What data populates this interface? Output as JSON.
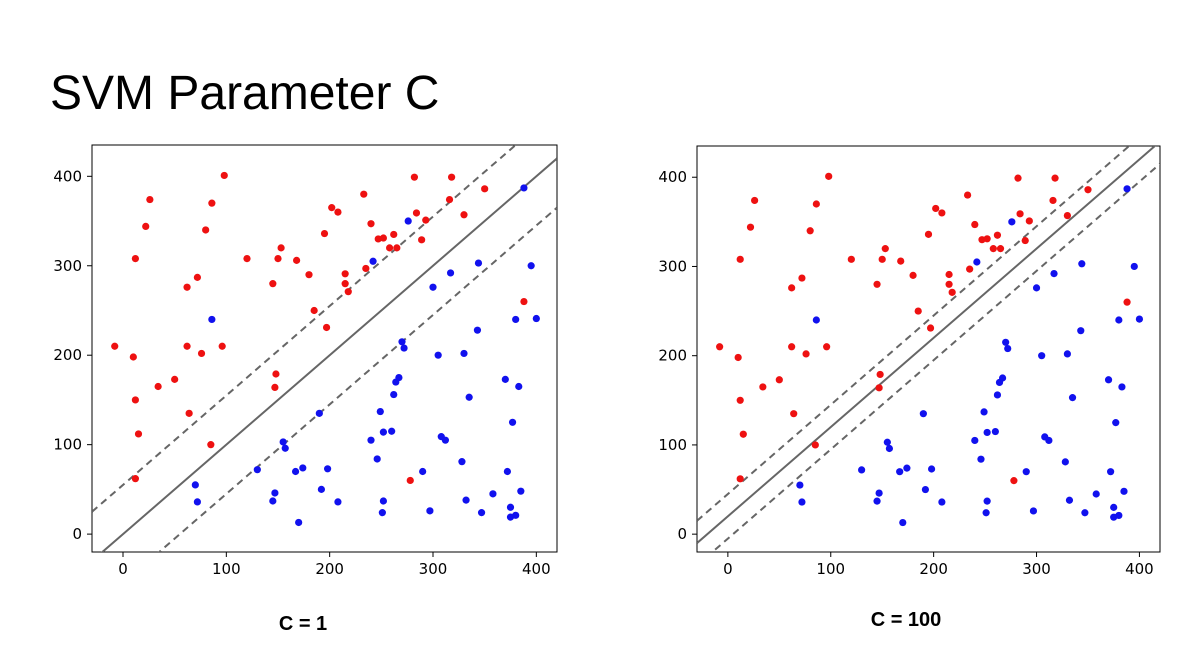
{
  "slide": {
    "title": "SVM Parameter C"
  },
  "chart_data": [
    {
      "type": "scatter",
      "title": "",
      "caption": "C = 1",
      "xlim": [
        -30,
        420
      ],
      "ylim": [
        -20,
        435
      ],
      "xticks": [
        0,
        100,
        200,
        300,
        400
      ],
      "yticks": [
        0,
        100,
        200,
        300,
        400
      ],
      "grid": false,
      "colors": {
        "red": "#ee1111",
        "blue": "#1111ee",
        "line": "#666666"
      },
      "boundary": {
        "slope": 1.0,
        "intercept": 0
      },
      "margins": [
        {
          "slope": 1.0,
          "intercept": 55
        },
        {
          "slope": 1.0,
          "intercept": -55
        }
      ],
      "series": [
        {
          "color": "red",
          "points": [
            [
              -8,
              210
            ],
            [
              10,
              198
            ],
            [
              12,
              308
            ],
            [
              12,
              150
            ],
            [
              15,
              112
            ],
            [
              12,
              62
            ],
            [
              22,
              344
            ],
            [
              26,
              374
            ],
            [
              34,
              165
            ],
            [
              50,
              173
            ],
            [
              62,
              210
            ],
            [
              62,
              276
            ],
            [
              64,
              135
            ],
            [
              72,
              287
            ],
            [
              76,
              202
            ],
            [
              80,
              340
            ],
            [
              85,
              100
            ],
            [
              86,
              370
            ],
            [
              96,
              210
            ],
            [
              98,
              401
            ],
            [
              120,
              308
            ],
            [
              145,
              280
            ],
            [
              147,
              164
            ],
            [
              148,
              179
            ],
            [
              150,
              308
            ],
            [
              153,
              320
            ],
            [
              168,
              306
            ],
            [
              180,
              290
            ],
            [
              185,
              250
            ],
            [
              195,
              336
            ],
            [
              197,
              231
            ],
            [
              202,
              365
            ],
            [
              208,
              360
            ],
            [
              215,
              280
            ],
            [
              215,
              291
            ],
            [
              218,
              271
            ],
            [
              233,
              380
            ],
            [
              235,
              297
            ],
            [
              240,
              347
            ],
            [
              247,
              330
            ],
            [
              252,
              331
            ],
            [
              258,
              320
            ],
            [
              262,
              335
            ],
            [
              265,
              320
            ],
            [
              278,
              60
            ],
            [
              282,
              399
            ],
            [
              284,
              359
            ],
            [
              289,
              329
            ],
            [
              293,
              351
            ],
            [
              316,
              374
            ],
            [
              318,
              399
            ],
            [
              330,
              357
            ],
            [
              350,
              386
            ],
            [
              388,
              260
            ]
          ]
        },
        {
          "color": "blue",
          "points": [
            [
              70,
              55
            ],
            [
              72,
              36
            ],
            [
              86,
              240
            ],
            [
              130,
              72
            ],
            [
              145,
              37
            ],
            [
              147,
              46
            ],
            [
              155,
              103
            ],
            [
              157,
              96
            ],
            [
              167,
              70
            ],
            [
              170,
              13
            ],
            [
              174,
              74
            ],
            [
              190,
              135
            ],
            [
              192,
              50
            ],
            [
              198,
              73
            ],
            [
              208,
              36
            ],
            [
              240,
              105
            ],
            [
              242,
              305
            ],
            [
              246,
              84
            ],
            [
              249,
              137
            ],
            [
              251,
              24
            ],
            [
              252,
              37
            ],
            [
              252,
              114
            ],
            [
              260,
              115
            ],
            [
              262,
              156
            ],
            [
              264,
              170
            ],
            [
              267,
              175
            ],
            [
              270,
              215
            ],
            [
              272,
              208
            ],
            [
              276,
              350
            ],
            [
              290,
              70
            ],
            [
              297,
              26
            ],
            [
              300,
              276
            ],
            [
              305,
              200
            ],
            [
              308,
              109
            ],
            [
              312,
              105
            ],
            [
              317,
              292
            ],
            [
              328,
              81
            ],
            [
              330,
              202
            ],
            [
              332,
              38
            ],
            [
              335,
              153
            ],
            [
              343,
              228
            ],
            [
              344,
              303
            ],
            [
              347,
              24
            ],
            [
              358,
              45
            ],
            [
              370,
              173
            ],
            [
              372,
              70
            ],
            [
              375,
              30
            ],
            [
              375,
              19
            ],
            [
              377,
              125
            ],
            [
              380,
              240
            ],
            [
              380,
              21
            ],
            [
              383,
              165
            ],
            [
              385,
              48
            ],
            [
              388,
              387
            ],
            [
              395,
              300
            ],
            [
              400,
              241
            ]
          ]
        }
      ]
    },
    {
      "type": "scatter",
      "title": "",
      "caption": "C = 100",
      "xlim": [
        -30,
        420
      ],
      "ylim": [
        -20,
        435
      ],
      "xticks": [
        0,
        100,
        200,
        300,
        400
      ],
      "yticks": [
        0,
        100,
        200,
        300,
        400
      ],
      "grid": false,
      "colors": {
        "red": "#ee1111",
        "blue": "#1111ee",
        "line": "#666666"
      },
      "boundary": {
        "slope": 1.0,
        "intercept": 20
      },
      "margins": [
        {
          "slope": 1.0,
          "intercept": 45
        },
        {
          "slope": 1.0,
          "intercept": -5
        }
      ],
      "series": [
        {
          "color": "red",
          "points": [
            [
              -8,
              210
            ],
            [
              10,
              198
            ],
            [
              12,
              308
            ],
            [
              12,
              150
            ],
            [
              15,
              112
            ],
            [
              12,
              62
            ],
            [
              22,
              344
            ],
            [
              26,
              374
            ],
            [
              34,
              165
            ],
            [
              50,
              173
            ],
            [
              62,
              210
            ],
            [
              62,
              276
            ],
            [
              64,
              135
            ],
            [
              72,
              287
            ],
            [
              76,
              202
            ],
            [
              80,
              340
            ],
            [
              85,
              100
            ],
            [
              86,
              370
            ],
            [
              96,
              210
            ],
            [
              98,
              401
            ],
            [
              120,
              308
            ],
            [
              145,
              280
            ],
            [
              147,
              164
            ],
            [
              148,
              179
            ],
            [
              150,
              308
            ],
            [
              153,
              320
            ],
            [
              168,
              306
            ],
            [
              180,
              290
            ],
            [
              185,
              250
            ],
            [
              195,
              336
            ],
            [
              197,
              231
            ],
            [
              202,
              365
            ],
            [
              208,
              360
            ],
            [
              215,
              280
            ],
            [
              215,
              291
            ],
            [
              218,
              271
            ],
            [
              233,
              380
            ],
            [
              235,
              297
            ],
            [
              240,
              347
            ],
            [
              247,
              330
            ],
            [
              252,
              331
            ],
            [
              258,
              320
            ],
            [
              262,
              335
            ],
            [
              265,
              320
            ],
            [
              278,
              60
            ],
            [
              282,
              399
            ],
            [
              284,
              359
            ],
            [
              289,
              329
            ],
            [
              293,
              351
            ],
            [
              316,
              374
            ],
            [
              318,
              399
            ],
            [
              330,
              357
            ],
            [
              350,
              386
            ],
            [
              388,
              260
            ]
          ]
        },
        {
          "color": "blue",
          "points": [
            [
              70,
              55
            ],
            [
              72,
              36
            ],
            [
              86,
              240
            ],
            [
              130,
              72
            ],
            [
              145,
              37
            ],
            [
              147,
              46
            ],
            [
              155,
              103
            ],
            [
              157,
              96
            ],
            [
              167,
              70
            ],
            [
              170,
              13
            ],
            [
              174,
              74
            ],
            [
              190,
              135
            ],
            [
              192,
              50
            ],
            [
              198,
              73
            ],
            [
              208,
              36
            ],
            [
              240,
              105
            ],
            [
              242,
              305
            ],
            [
              246,
              84
            ],
            [
              249,
              137
            ],
            [
              251,
              24
            ],
            [
              252,
              37
            ],
            [
              252,
              114
            ],
            [
              260,
              115
            ],
            [
              262,
              156
            ],
            [
              264,
              170
            ],
            [
              267,
              175
            ],
            [
              270,
              215
            ],
            [
              272,
              208
            ],
            [
              276,
              350
            ],
            [
              290,
              70
            ],
            [
              297,
              26
            ],
            [
              300,
              276
            ],
            [
              305,
              200
            ],
            [
              308,
              109
            ],
            [
              312,
              105
            ],
            [
              317,
              292
            ],
            [
              328,
              81
            ],
            [
              330,
              202
            ],
            [
              332,
              38
            ],
            [
              335,
              153
            ],
            [
              343,
              228
            ],
            [
              344,
              303
            ],
            [
              347,
              24
            ],
            [
              358,
              45
            ],
            [
              370,
              173
            ],
            [
              372,
              70
            ],
            [
              375,
              30
            ],
            [
              375,
              19
            ],
            [
              377,
              125
            ],
            [
              380,
              240
            ],
            [
              380,
              21
            ],
            [
              383,
              165
            ],
            [
              385,
              48
            ],
            [
              388,
              387
            ],
            [
              395,
              300
            ],
            [
              400,
              241
            ]
          ]
        }
      ]
    }
  ]
}
